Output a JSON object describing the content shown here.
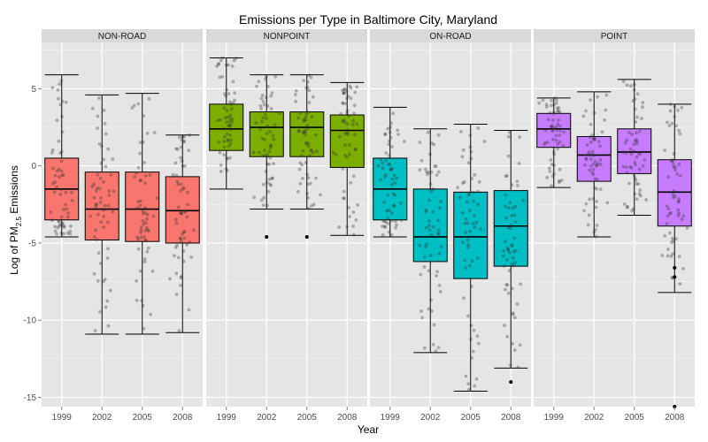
{
  "chart_data": {
    "type": "box",
    "title": "Emissions per Type in Baltimore City, Maryland",
    "xlabel": "Year",
    "ylabel": {
      "main": "Log of PM",
      "sub": "2.5",
      "suffix": " Emissions"
    },
    "ylim": [
      -15.6,
      8
    ],
    "yticks": [
      5,
      0,
      -5,
      -10,
      -15
    ],
    "categories": [
      "1999",
      "2002",
      "2005",
      "2008"
    ],
    "grid": true,
    "jittered_points": true,
    "facets": [
      {
        "name": "NON-ROAD",
        "color": "#f8766d",
        "boxes": [
          {
            "year": "1999",
            "min": -4.6,
            "q1": -3.5,
            "median": -1.5,
            "q3": 0.5,
            "max": 5.9,
            "outliers": []
          },
          {
            "year": "2002",
            "min": -10.9,
            "q1": -4.8,
            "median": -2.8,
            "q3": -0.4,
            "max": 4.6,
            "outliers": []
          },
          {
            "year": "2005",
            "min": -10.9,
            "q1": -4.9,
            "median": -2.8,
            "q3": -0.4,
            "max": 4.7,
            "outliers": []
          },
          {
            "year": "2008",
            "min": -10.8,
            "q1": -5.0,
            "median": -2.9,
            "q3": -0.7,
            "max": 2.0,
            "outliers": []
          }
        ]
      },
      {
        "name": "NONPOINT",
        "color": "#7cae00",
        "boxes": [
          {
            "year": "1999",
            "min": -1.5,
            "q1": 1.0,
            "median": 2.4,
            "q3": 4.0,
            "max": 7.0,
            "outliers": []
          },
          {
            "year": "2002",
            "min": -2.8,
            "q1": 0.6,
            "median": 2.5,
            "q3": 3.5,
            "max": 5.9,
            "outliers": [
              -4.6
            ]
          },
          {
            "year": "2005",
            "min": -2.8,
            "q1": 0.6,
            "median": 2.5,
            "q3": 3.5,
            "max": 5.9,
            "outliers": [
              -4.6
            ]
          },
          {
            "year": "2008",
            "min": -4.5,
            "q1": -0.1,
            "median": 2.3,
            "q3": 3.3,
            "max": 5.4,
            "outliers": []
          }
        ]
      },
      {
        "name": "ON-ROAD",
        "color": "#00bfc4",
        "boxes": [
          {
            "year": "1999",
            "min": -4.6,
            "q1": -3.5,
            "median": -1.5,
            "q3": 0.5,
            "max": 3.8,
            "outliers": []
          },
          {
            "year": "2002",
            "min": -12.1,
            "q1": -6.2,
            "median": -4.6,
            "q3": -1.5,
            "max": 2.4,
            "outliers": []
          },
          {
            "year": "2005",
            "min": -14.6,
            "q1": -7.3,
            "median": -4.6,
            "q3": -1.7,
            "max": 2.7,
            "outliers": []
          },
          {
            "year": "2008",
            "min": -13.1,
            "q1": -6.5,
            "median": -3.9,
            "q3": -1.6,
            "max": 2.3,
            "outliers": [
              -14.0
            ]
          }
        ]
      },
      {
        "name": "POINT",
        "color": "#c77cff",
        "boxes": [
          {
            "year": "1999",
            "min": -1.4,
            "q1": 1.2,
            "median": 2.4,
            "q3": 3.4,
            "max": 4.4,
            "outliers": []
          },
          {
            "year": "2002",
            "min": -4.6,
            "q1": -1.0,
            "median": 0.7,
            "q3": 1.9,
            "max": 4.8,
            "outliers": []
          },
          {
            "year": "2005",
            "min": -3.2,
            "q1": -0.5,
            "median": 0.9,
            "q3": 2.4,
            "max": 5.6,
            "outliers": []
          },
          {
            "year": "2008",
            "min": -8.2,
            "q1": -3.9,
            "median": -1.7,
            "q3": 0.4,
            "max": 4.0,
            "outliers": [
              -15.6,
              -6.6,
              -7.2
            ]
          }
        ]
      }
    ]
  }
}
